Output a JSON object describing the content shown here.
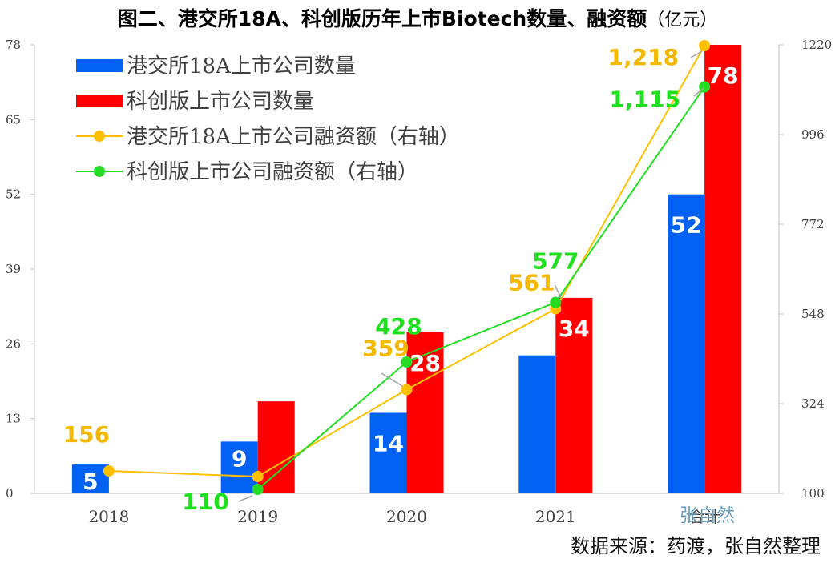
{
  "title": {
    "main": "图二、港交所18A、科创版历年上市Biotech数量、融资额",
    "unit": "（亿元）"
  },
  "source_note": "数据来源：药渡，张自然整理",
  "watermark": "张自然",
  "chart_data": {
    "type": "bar+line",
    "categories": [
      "2018",
      "2019",
      "2020",
      "2021",
      "合计"
    ],
    "left_axis": {
      "ticks": [
        0,
        13,
        26,
        39,
        52,
        65,
        78
      ],
      "range": [
        0,
        78
      ]
    },
    "right_axis": {
      "ticks": [
        100,
        324,
        548,
        772,
        996,
        1220
      ],
      "range": [
        100,
        1220
      ]
    },
    "bar_series": [
      {
        "name": "港交所18A上市公司数量",
        "color": "#0061f2",
        "values": [
          5,
          9,
          14,
          24,
          52
        ],
        "labels": [
          "5",
          "9",
          "14",
          "",
          "52"
        ]
      },
      {
        "name": "科创版上市公司数量",
        "color": "#ff0000",
        "values": [
          null,
          16,
          28,
          34,
          78
        ],
        "labels": [
          "",
          "",
          "28",
          "34",
          "78"
        ]
      }
    ],
    "line_series": [
      {
        "name": "港交所18A上市公司融资额（右轴）",
        "color": "#ffc000",
        "label_color": "#f5b800",
        "values": [
          156,
          142,
          359,
          561,
          1218
        ],
        "labels": [
          "156",
          "",
          "359",
          "561",
          "1,218"
        ]
      },
      {
        "name": "科创版上市公司融资额（右轴）",
        "color": "#22dd22",
        "label_color": "#1ee01e",
        "values": [
          null,
          110,
          428,
          577,
          1115
        ],
        "labels": [
          "",
          "110",
          "428",
          "577",
          "1,115"
        ]
      }
    ],
    "legend_position": "top-left",
    "grid": false
  }
}
